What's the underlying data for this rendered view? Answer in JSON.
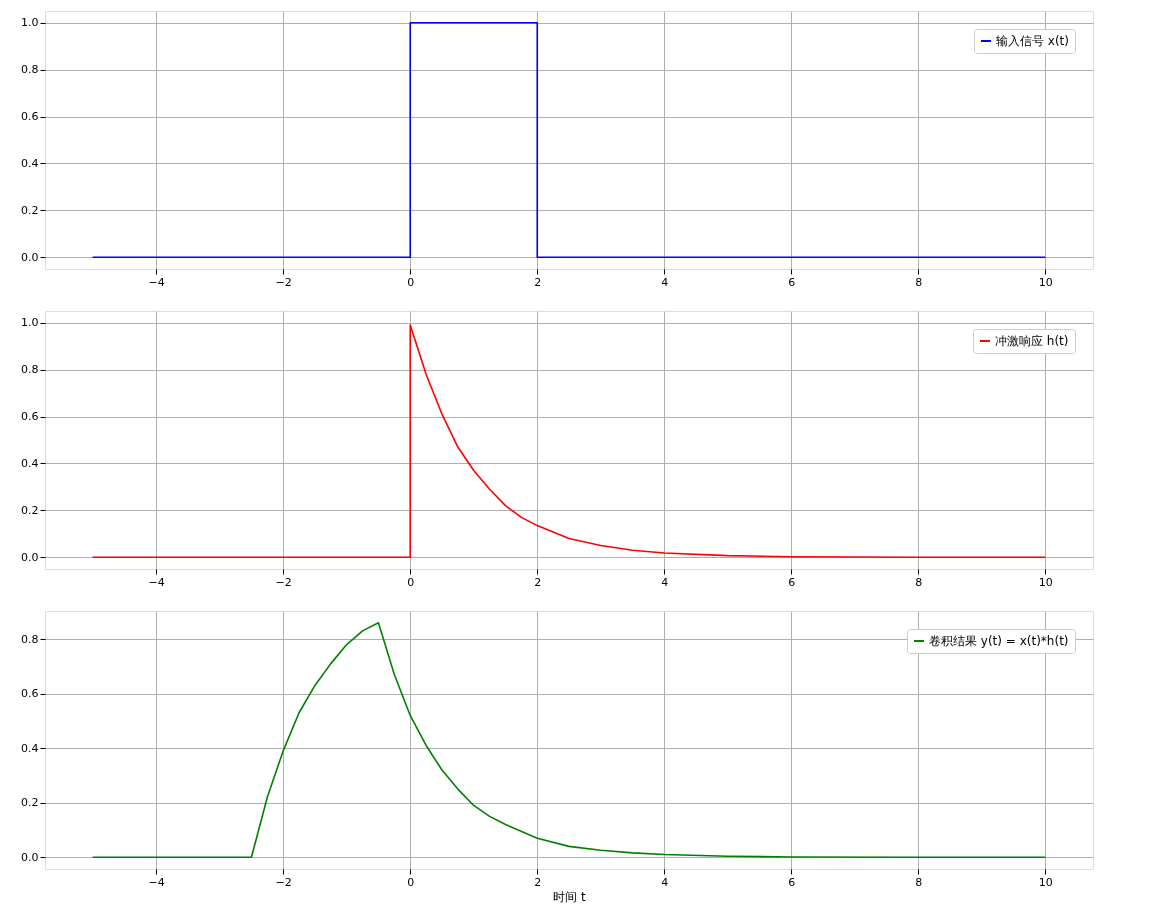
{
  "chart_data": [
    {
      "type": "line",
      "xlim": [
        -5.75,
        10.75
      ],
      "ylim": [
        -0.05,
        1.05
      ],
      "xticks": [
        -4,
        -2,
        0,
        2,
        4,
        6,
        8,
        10
      ],
      "yticks": [
        {
          "value": 0,
          "label": "0.0"
        },
        {
          "value": 0.2,
          "label": "0.2"
        },
        {
          "value": 0.4,
          "label": "0.4"
        },
        {
          "value": 0.6,
          "label": "0.6"
        },
        {
          "value": 0.8,
          "label": "0.8"
        },
        {
          "value": 1,
          "label": "1.0"
        }
      ],
      "grid": true,
      "legend": "top right",
      "series": [
        {
          "name": "输入信号 x(t)",
          "color": "#0000ff",
          "x": [
            -5,
            0,
            0,
            2,
            2,
            10
          ],
          "values": [
            0,
            0,
            1,
            1,
            0,
            0
          ]
        }
      ]
    },
    {
      "type": "line",
      "xlim": [
        -5.75,
        10.75
      ],
      "ylim": [
        -0.05,
        1.05
      ],
      "xticks": [
        -4,
        -2,
        0,
        2,
        4,
        6,
        8,
        10
      ],
      "yticks": [
        {
          "value": 0,
          "label": "0.0"
        },
        {
          "value": 0.2,
          "label": "0.2"
        },
        {
          "value": 0.4,
          "label": "0.4"
        },
        {
          "value": 0.6,
          "label": "0.6"
        },
        {
          "value": 0.8,
          "label": "0.8"
        },
        {
          "value": 1,
          "label": "1.0"
        }
      ],
      "grid": true,
      "legend": "top right",
      "series": [
        {
          "name": "冲激响应 h(t)",
          "color": "#ff0000",
          "x": [
            -5,
            0,
            0,
            0.25,
            0.5,
            0.75,
            1,
            1.25,
            1.5,
            1.75,
            2,
            2.5,
            3,
            3.5,
            4,
            5,
            6,
            8,
            10
          ],
          "values": [
            0,
            0,
            0.99,
            0.78,
            0.61,
            0.47,
            0.37,
            0.29,
            0.22,
            0.17,
            0.135,
            0.08,
            0.05,
            0.03,
            0.018,
            0.007,
            0.002,
            0,
            0
          ]
        }
      ]
    },
    {
      "type": "line",
      "xlim": [
        -5.75,
        10.75
      ],
      "ylim": [
        -0.043,
        0.903
      ],
      "xticks": [
        -4,
        -2,
        0,
        2,
        4,
        6,
        8,
        10
      ],
      "yticks": [
        {
          "value": 0,
          "label": "0.0"
        },
        {
          "value": 0.2,
          "label": "0.2"
        },
        {
          "value": 0.4,
          "label": "0.4"
        },
        {
          "value": 0.6,
          "label": "0.6"
        },
        {
          "value": 0.8,
          "label": "0.8"
        }
      ],
      "grid": true,
      "legend": "top right",
      "xlabel": "时间 t",
      "series": [
        {
          "name": "卷积结果 y(t) = x(t)*h(t)",
          "color": "#008000",
          "x": [
            -5,
            -2.5,
            -2.25,
            -2,
            -1.75,
            -1.5,
            -1.25,
            -1,
            -0.75,
            -0.5,
            -0.25,
            0,
            0.25,
            0.5,
            0.75,
            1,
            1.25,
            1.5,
            2,
            2.5,
            3,
            3.5,
            4,
            5,
            6,
            8,
            10
          ],
          "values": [
            0,
            0,
            0.22,
            0.39,
            0.53,
            0.63,
            0.71,
            0.78,
            0.83,
            0.86,
            0.67,
            0.52,
            0.41,
            0.32,
            0.25,
            0.19,
            0.15,
            0.12,
            0.07,
            0.04,
            0.026,
            0.016,
            0.01,
            0.004,
            0.001,
            0,
            0
          ]
        }
      ]
    }
  ]
}
